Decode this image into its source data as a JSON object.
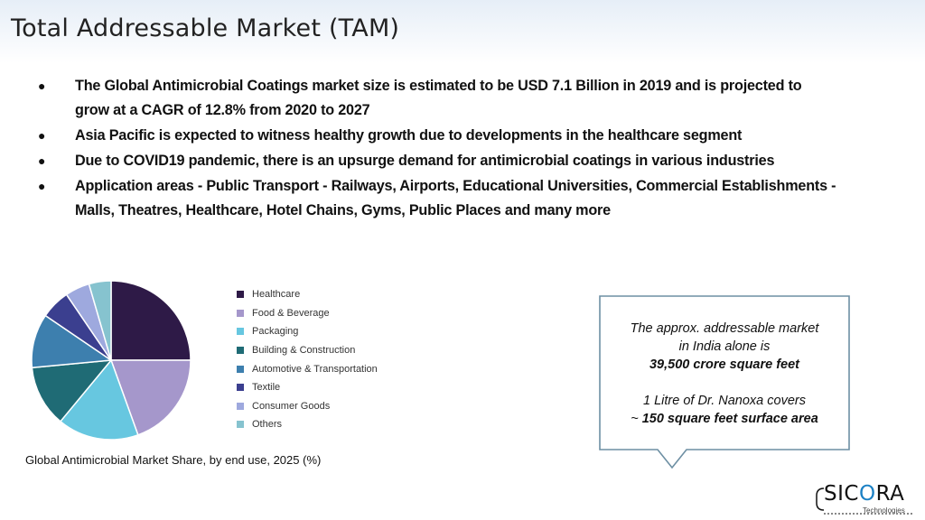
{
  "slide": {
    "title": "Total Addressable Market (TAM)"
  },
  "bullets": [
    {
      "line1": "The Global Antimicrobial Coatings market size is estimated to be USD 7.1 Billion in 2019 and is projected to",
      "line2": "grow at a CAGR of 12.8% from 2020 to 2027"
    },
    {
      "line1": "Asia Pacific is expected to witness healthy growth due to developments in the healthcare segment",
      "line2": ""
    },
    {
      "line1": "Due to COVID19 pandemic, there is an upsurge demand for antimicrobial coatings in various industries",
      "line2": ""
    },
    {
      "line1": "Application areas - Public Transport - Railways, Airports, Educational Universities, Commercial Establishments -",
      "line2": "Malls, Theatres, Healthcare, Hotel Chains, Gyms, Public Places and many more"
    }
  ],
  "bullet_glyph": "●",
  "chart_data": {
    "type": "pie",
    "title": "Global Antimicrobial Market Share, by end use, 2025 (%)",
    "categories": [
      "Healthcare",
      "Food & Beverage",
      "Packaging",
      "Building & Construction",
      "Automotive & Transportation",
      "Textile",
      "Consumer Goods",
      "Others"
    ],
    "values": [
      25,
      19.5,
      16.5,
      12.5,
      11,
      6,
      5,
      4.5
    ],
    "colors": [
      "#2e1a47",
      "#a597cb",
      "#67c7e0",
      "#1f6b75",
      "#3d7fae",
      "#3b3f8f",
      "#9ea9de",
      "#86c3cf"
    ],
    "legend": "right"
  },
  "callout": {
    "line1": "The approx. addressable market",
    "line2": "in India alone is",
    "line3": "39,500 crore square feet",
    "line4": "1 Litre of Dr. Nanoxa covers",
    "line5": "~ 150 square feet surface area"
  },
  "logo": {
    "word_a": "SIC",
    "word_b": "O",
    "word_c": "RA",
    "subtitle": "Technologies",
    "accent": "#1b80c4"
  }
}
